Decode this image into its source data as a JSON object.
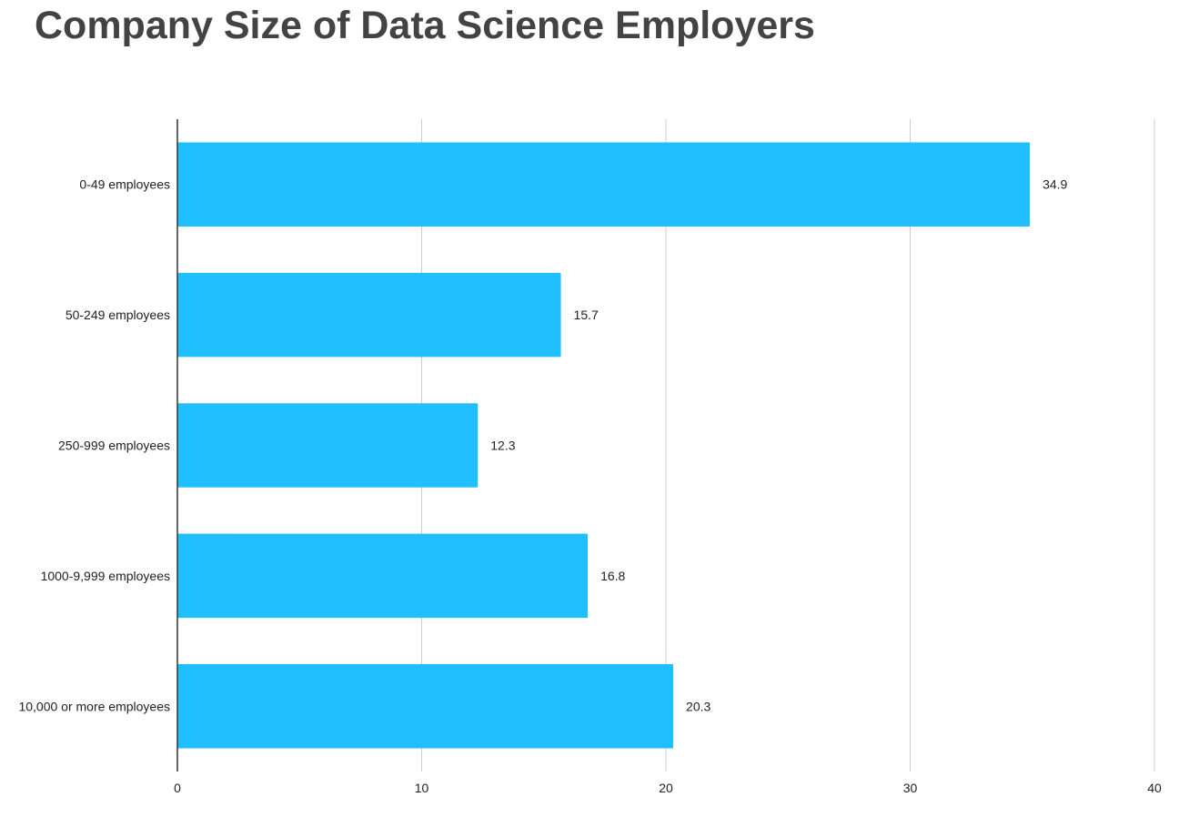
{
  "chart_data": {
    "type": "bar",
    "orientation": "horizontal",
    "title": "Company Size of Data Science Employers",
    "categories": [
      "0-49 employees",
      "50-249 employees",
      "250-999 employees",
      "1000-9,999 employees",
      "10,000 or more employees"
    ],
    "values": [
      34.9,
      15.7,
      12.3,
      16.8,
      20.3
    ],
    "value_labels": [
      "34.9",
      "15.7",
      "12.3",
      "16.8",
      "20.3"
    ],
    "xlim": [
      0,
      40
    ],
    "xticks": [
      0,
      10,
      20,
      30,
      40
    ],
    "xtick_labels": [
      "0",
      "10",
      "20",
      "30",
      "40"
    ],
    "grid": true,
    "legend": "none",
    "bar_color": "#20bfff",
    "grid_color": "#cccccc",
    "axis_color": "#333333"
  }
}
